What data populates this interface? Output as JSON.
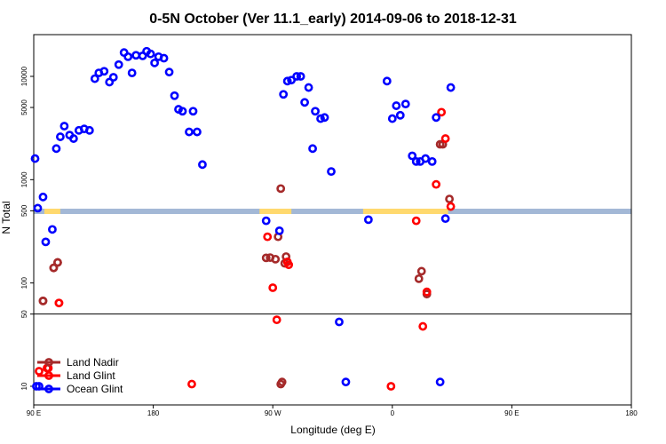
{
  "chart_data": {
    "type": "scatter",
    "title": "0-5N October (Ver 11.1_early)   2014-09-06 to 2018-12-31",
    "xlabel": "Longitude (deg E)",
    "ylabel": "N Total",
    "x_scale": "longitude, 90E to 180 via dateline (wrapping)",
    "y_scale": "log",
    "x_ticks": [
      "90 E",
      "180",
      "90 W",
      "0",
      "90 E",
      "180"
    ],
    "y_ticks": [
      "10",
      "50",
      "100",
      "500",
      "1000",
      "5000",
      "10000"
    ],
    "separator_line_y": 50,
    "land_strip": {
      "ocean_color": "#a3b8d6",
      "land_color": "#ffd96e",
      "land_ranges_lon": [
        [
          -100,
          -76
        ],
        [
          6,
          42
        ],
        [
          98,
          110
        ],
        [
          -22,
          12
        ]
      ]
    },
    "legend": {
      "placement": "bottom-left"
    },
    "series": [
      {
        "name": "Land Nadir",
        "color": "#a52a2a",
        "points": [
          [
            97,
            67
          ],
          [
            105,
            140
          ],
          [
            108,
            158
          ],
          [
            -95,
            175
          ],
          [
            -92,
            176
          ],
          [
            -88,
            170
          ],
          [
            -86,
            280
          ],
          [
            -84,
            820
          ],
          [
            -80,
            180
          ],
          [
            -81,
            155
          ],
          [
            20,
            110
          ],
          [
            22,
            130
          ],
          [
            26,
            78
          ],
          [
            36,
            2200
          ],
          [
            38,
            2200
          ],
          [
            43,
            650
          ],
          [
            -83,
            11
          ],
          [
            -84,
            10.5
          ],
          [
            97,
            67
          ],
          [
            105,
            140
          ],
          [
            108,
            158
          ]
        ]
      },
      {
        "name": "Land Glint",
        "color": "#ff0000",
        "points": [
          [
            101,
            15
          ],
          [
            109,
            64
          ],
          [
            -151,
            10.5
          ],
          [
            -94,
            280
          ],
          [
            -90,
            90
          ],
          [
            -87,
            44
          ],
          [
            -79,
            160
          ],
          [
            -78,
            150
          ],
          [
            -1,
            10
          ],
          [
            18,
            400
          ],
          [
            23,
            38
          ],
          [
            26,
            82
          ],
          [
            33,
            900
          ],
          [
            37,
            4500
          ],
          [
            40,
            2500
          ],
          [
            44,
            550
          ],
          [
            94,
            14
          ],
          [
            100,
            15
          ],
          [
            109,
            64
          ]
        ]
      },
      {
        "name": "Ocean Glint",
        "color": "#0000ff",
        "points": [
          [
            91,
            1600
          ],
          [
            93,
            530
          ],
          [
            97,
            680
          ],
          [
            99,
            250
          ],
          [
            104,
            330
          ],
          [
            107,
            2000
          ],
          [
            110,
            2600
          ],
          [
            113,
            3300
          ],
          [
            117,
            2700
          ],
          [
            120,
            2500
          ],
          [
            124,
            3000
          ],
          [
            128,
            3100
          ],
          [
            132,
            3000
          ],
          [
            136,
            9500
          ],
          [
            139,
            10800
          ],
          [
            143,
            11200
          ],
          [
            147,
            8800
          ],
          [
            150,
            9800
          ],
          [
            154,
            13000
          ],
          [
            158,
            17000
          ],
          [
            161,
            15500
          ],
          [
            164,
            10800
          ],
          [
            167,
            16000
          ],
          [
            172,
            15800
          ],
          [
            175,
            17500
          ],
          [
            178,
            16500
          ],
          [
            -179,
            13500
          ],
          [
            -176,
            15500
          ],
          [
            -172,
            15000
          ],
          [
            -168,
            11000
          ],
          [
            -164,
            6500
          ],
          [
            -161,
            4800
          ],
          [
            -158,
            4600
          ],
          [
            -153,
            2900
          ],
          [
            -150,
            4600
          ],
          [
            -147,
            2900
          ],
          [
            -143,
            1400
          ],
          [
            -95,
            400
          ],
          [
            -85,
            320
          ],
          [
            -82,
            6700
          ],
          [
            -79,
            9000
          ],
          [
            -76,
            9200
          ],
          [
            -72,
            10000
          ],
          [
            -69,
            10000
          ],
          [
            -66,
            5600
          ],
          [
            -63,
            7800
          ],
          [
            -60,
            2000
          ],
          [
            -58,
            4600
          ],
          [
            -54,
            3900
          ],
          [
            -51,
            4000
          ],
          [
            -46,
            1200
          ],
          [
            -40,
            42
          ],
          [
            -35,
            11
          ],
          [
            -18,
            410
          ],
          [
            -4,
            9000
          ],
          [
            0,
            3900
          ],
          [
            3,
            5200
          ],
          [
            6,
            4200
          ],
          [
            10,
            5400
          ],
          [
            15,
            1700
          ],
          [
            18,
            1500
          ],
          [
            21,
            1500
          ],
          [
            25,
            1600
          ],
          [
            30,
            1500
          ],
          [
            33,
            4000
          ],
          [
            36,
            11
          ],
          [
            40,
            420
          ],
          [
            44,
            7800
          ],
          [
            92,
            10
          ],
          [
            94,
            10
          ]
        ]
      }
    ]
  }
}
